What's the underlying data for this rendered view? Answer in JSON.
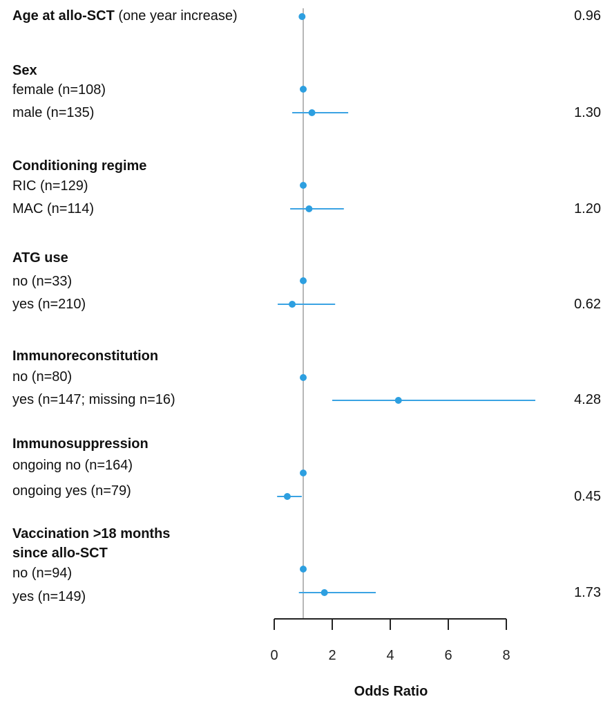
{
  "chart_data": {
    "type": "forest",
    "xlabel": "Odds Ratio",
    "xlim": [
      0,
      8
    ],
    "xticks": [
      0,
      2,
      4,
      6,
      8
    ],
    "reference_line": 1,
    "colors": {
      "point": "#2d9fe0",
      "ci": "#3aa3e3",
      "refline": "#b7b7b7",
      "axis": "#222222"
    },
    "rows": [
      {
        "kind": "header-inline",
        "group": "Age at allo-SCT",
        "note": "(one year increase)",
        "or": 0.96,
        "lo": 0.96,
        "hi": 0.96,
        "or_text": "0.96"
      },
      {
        "kind": "group",
        "group": "Sex"
      },
      {
        "kind": "level",
        "label": "female (n=108)",
        "or": 1,
        "lo": 1,
        "hi": 1,
        "or_text": ""
      },
      {
        "kind": "level",
        "label": "male (n=135)",
        "or": 1.3,
        "lo": 0.62,
        "hi": 2.55,
        "or_text": "1.30"
      },
      {
        "kind": "group",
        "group": "Conditioning regime"
      },
      {
        "kind": "level",
        "label": "RIC (n=129)",
        "or": 1,
        "lo": 1,
        "hi": 1,
        "or_text": ""
      },
      {
        "kind": "level",
        "label": "MAC (n=114)",
        "or": 1.2,
        "lo": 0.55,
        "hi": 2.4,
        "or_text": "1.20"
      },
      {
        "kind": "group",
        "group": "ATG use"
      },
      {
        "kind": "level",
        "label": "no (n=33)",
        "or": 1,
        "lo": 1,
        "hi": 1,
        "or_text": ""
      },
      {
        "kind": "level",
        "label": "yes (n=210)",
        "or": 0.62,
        "lo": 0.12,
        "hi": 2.1,
        "or_text": "0.62"
      },
      {
        "kind": "group",
        "group": "Immunoreconstitution"
      },
      {
        "kind": "level",
        "label": "no (n=80)",
        "or": 1,
        "lo": 1,
        "hi": 1,
        "or_text": ""
      },
      {
        "kind": "level",
        "label": "yes (n=147; missing n=16)",
        "or": 4.28,
        "lo": 2.0,
        "hi": 9.0,
        "or_text": "4.28"
      },
      {
        "kind": "group",
        "group": "Immunosuppression"
      },
      {
        "kind": "level",
        "label": "ongoing no (n=164)",
        "or": 1,
        "lo": 1,
        "hi": 1,
        "or_text": ""
      },
      {
        "kind": "level",
        "label": "ongoing yes (n=79)",
        "or": 0.45,
        "lo": 0.1,
        "hi": 0.95,
        "or_text": "0.45"
      },
      {
        "kind": "group2",
        "group": "Vaccination >18 months",
        "group_line2": "since allo-SCT"
      },
      {
        "kind": "level",
        "label": "no (n=94)",
        "or": 1,
        "lo": 1,
        "hi": 1,
        "or_text": ""
      },
      {
        "kind": "level",
        "label": "yes (n=149)",
        "or": 1.73,
        "lo": 0.85,
        "hi": 3.5,
        "or_text": "1.73"
      }
    ]
  }
}
